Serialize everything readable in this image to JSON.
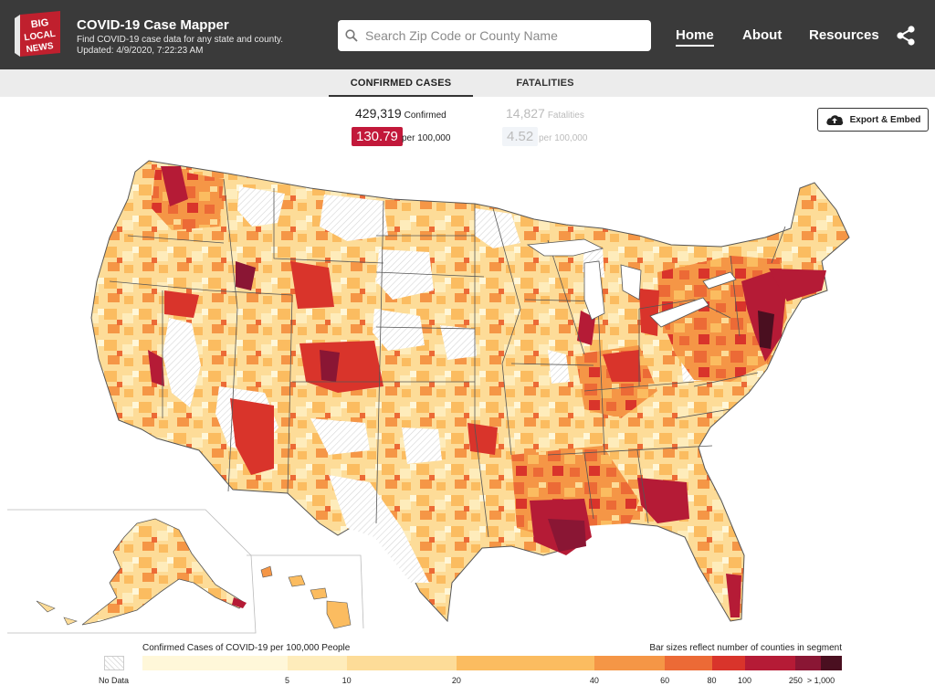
{
  "app": {
    "logo_text": [
      "BIG",
      "LOCAL",
      "NEWS"
    ],
    "title": "COVID-19 Case Mapper",
    "subtitle": "Find COVID-19 case data for any state and county.",
    "updated": "Updated: 4/9/2020, 7:22:23 AM"
  },
  "search": {
    "placeholder": "Search Zip Code or County Name"
  },
  "nav": {
    "home": "Home",
    "about": "About",
    "resources": "Resources"
  },
  "tabs": {
    "confirmed": "CONFIRMED CASES",
    "fatalities": "FATALITIES"
  },
  "stats": {
    "confirmed_total": "429,319",
    "confirmed_label": "Confirmed",
    "confirmed_rate": "130.79",
    "fatalities_total": "14,827",
    "fatalities_label": "Fatalities",
    "fatalities_rate": "4.52",
    "per_label": "per 100,000"
  },
  "export": {
    "label": "Export & Embed"
  },
  "legend": {
    "title": "Confirmed Cases of COVID-19 per 100,000 People",
    "note": "Bar sizes reflect number of counties in segment",
    "no_data": "No Data",
    "segments": [
      {
        "color": "#fff7d9",
        "upper": "5"
      },
      {
        "color": "#feecbb",
        "upper": "10"
      },
      {
        "color": "#fddc98",
        "upper": "20"
      },
      {
        "color": "#fbbc60",
        "upper": "40"
      },
      {
        "color": "#f59646",
        "upper": "60"
      },
      {
        "color": "#ec6a36",
        "upper": "80"
      },
      {
        "color": "#d9342b",
        "upper": "100"
      },
      {
        "color": "#b51b36",
        "upper": "250"
      },
      {
        "color": "#8a1634",
        "upper": "> 1,000"
      },
      {
        "color": "#4a0f20",
        "upper": ""
      }
    ],
    "segment_share": [
      0.207,
      0.085,
      0.157,
      0.197,
      0.101,
      0.067,
      0.047,
      0.073,
      0.036,
      0.03
    ]
  },
  "colors": {
    "header_bg": "#3a3a3a",
    "accent_red": "#c2183a",
    "logo_red": "#c0202e"
  }
}
